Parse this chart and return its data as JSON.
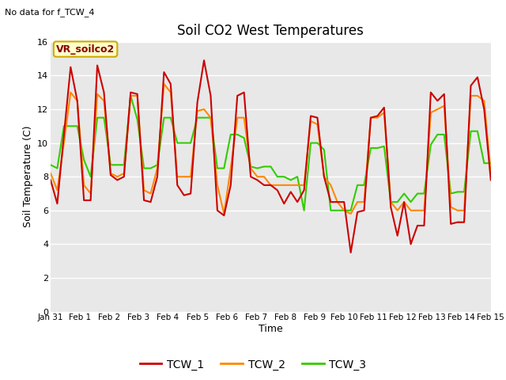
{
  "title": "Soil CO2 West Temperatures",
  "subtitle": "No data for f_TCW_4",
  "ylabel": "Soil Temperature (C)",
  "xlabel": "Time",
  "annotation": "VR_soilco2",
  "ylim": [
    0,
    16
  ],
  "bg_color": "#e8e8e8",
  "x_labels": [
    "Jan 31",
    "Feb 1",
    "Feb 2",
    "Feb 3",
    "Feb 4",
    "Feb 5",
    "Feb 6",
    "Feb 7",
    "Feb 8",
    "Feb 9",
    "Feb 10",
    "Feb 11",
    "Feb 12",
    "Feb 13",
    "Feb 14",
    "Feb 15"
  ],
  "legend": [
    "TCW_1",
    "TCW_2",
    "TCW_3"
  ],
  "colors": [
    "#cc0000",
    "#ff8800",
    "#33cc00"
  ],
  "TCW_1": [
    7.8,
    6.4,
    10.5,
    14.5,
    12.5,
    6.6,
    6.6,
    14.6,
    13.0,
    8.1,
    7.8,
    8.0,
    13.0,
    12.9,
    6.6,
    6.5,
    8.0,
    14.2,
    13.5,
    7.5,
    6.9,
    7.0,
    12.4,
    14.9,
    12.8,
    6.0,
    5.7,
    7.5,
    12.8,
    13.0,
    8.0,
    7.8,
    7.5,
    7.5,
    7.2,
    6.4,
    7.1,
    6.5,
    7.2,
    11.6,
    11.5,
    8.0,
    6.5,
    6.5,
    6.5,
    3.5,
    5.9,
    6.0,
    11.5,
    11.6,
    12.1,
    6.2,
    4.5,
    6.5,
    4.0,
    5.1,
    5.1,
    13.0,
    12.5,
    12.9,
    5.2,
    5.3,
    5.3,
    13.4,
    13.9,
    12.0,
    7.8
  ],
  "TCW_2": [
    8.2,
    7.2,
    10.0,
    13.0,
    12.5,
    7.5,
    7.0,
    12.9,
    12.5,
    8.2,
    8.0,
    8.2,
    12.8,
    12.8,
    7.2,
    7.0,
    8.5,
    13.5,
    13.0,
    8.0,
    8.0,
    8.0,
    11.9,
    12.0,
    11.5,
    7.5,
    5.8,
    8.5,
    11.5,
    11.5,
    8.5,
    8.0,
    8.0,
    7.5,
    7.5,
    7.5,
    7.5,
    7.5,
    7.5,
    11.3,
    11.1,
    8.0,
    7.5,
    6.5,
    6.0,
    5.8,
    6.5,
    6.5,
    11.5,
    11.5,
    11.8,
    6.5,
    6.0,
    6.5,
    6.0,
    6.0,
    6.0,
    11.8,
    12.0,
    12.2,
    6.2,
    6.0,
    6.0,
    12.8,
    12.8,
    12.5,
    8.2
  ],
  "TCW_3": [
    8.7,
    8.5,
    11.0,
    11.0,
    11.0,
    9.0,
    8.0,
    11.5,
    11.5,
    8.7,
    8.7,
    8.7,
    12.8,
    11.4,
    8.5,
    8.5,
    8.7,
    11.5,
    11.5,
    10.0,
    10.0,
    10.0,
    11.5,
    11.5,
    11.5,
    8.5,
    8.5,
    10.5,
    10.5,
    10.3,
    8.6,
    8.5,
    8.6,
    8.6,
    8.0,
    8.0,
    7.8,
    8.0,
    6.0,
    10.0,
    10.0,
    9.6,
    6.0,
    6.0,
    6.0,
    6.0,
    7.5,
    7.5,
    9.7,
    9.7,
    9.8,
    6.5,
    6.5,
    7.0,
    6.5,
    7.0,
    7.0,
    9.9,
    10.5,
    10.5,
    7.0,
    7.1,
    7.1,
    10.7,
    10.7,
    8.8,
    8.8
  ],
  "linewidth": 1.5
}
